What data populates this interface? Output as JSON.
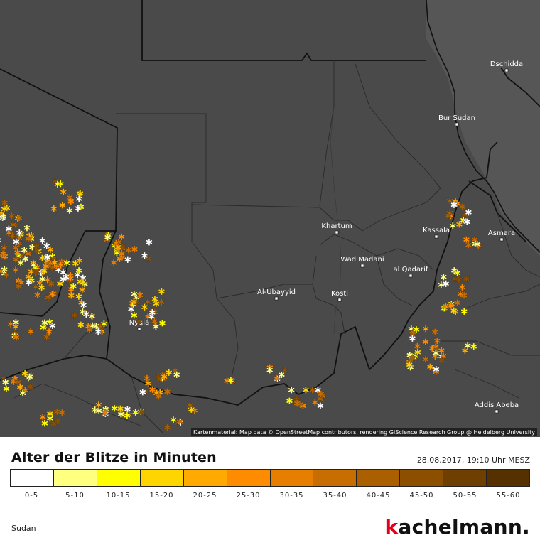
{
  "map": {
    "attribution": "Kartenmaterial: Map data © OpenStreetMap contributors, rendering GIScience Research Group @ Heidelberg University",
    "cities": [
      {
        "name": "Dschidda"
      },
      {
        "name": "Bur Sudan"
      },
      {
        "name": "Khartum"
      },
      {
        "name": "Kassala"
      },
      {
        "name": "Asmara"
      },
      {
        "name": "Wad Madani"
      },
      {
        "name": "al Qadarif"
      },
      {
        "name": "Al-Ubayyid"
      },
      {
        "name": "Kosti"
      },
      {
        "name": "Nyala"
      },
      {
        "name": "Addis Abeba"
      }
    ]
  },
  "legend": {
    "title": "Alter der Blitze in Minuten",
    "timestamp": "28.08.2017, 19:10 Uhr MESZ",
    "classes": [
      {
        "label": "0-5",
        "color": "#ffffff"
      },
      {
        "label": "5-10",
        "color": "#ffff80"
      },
      {
        "label": "10-15",
        "color": "#ffff00"
      },
      {
        "label": "15-20",
        "color": "#ffd500"
      },
      {
        "label": "20-25",
        "color": "#ffaa00"
      },
      {
        "label": "25-30",
        "color": "#ff8c00"
      },
      {
        "label": "30-35",
        "color": "#e67e00"
      },
      {
        "label": "35-40",
        "color": "#c86e00"
      },
      {
        "label": "40-45",
        "color": "#aa5f00"
      },
      {
        "label": "45-50",
        "color": "#8c4f00"
      },
      {
        "label": "50-55",
        "color": "#6e3f00"
      },
      {
        "label": "55-60",
        "color": "#553000"
      }
    ]
  },
  "footer": {
    "region": "Sudan",
    "brand_k": "k",
    "brand_rest": "achelmann."
  }
}
